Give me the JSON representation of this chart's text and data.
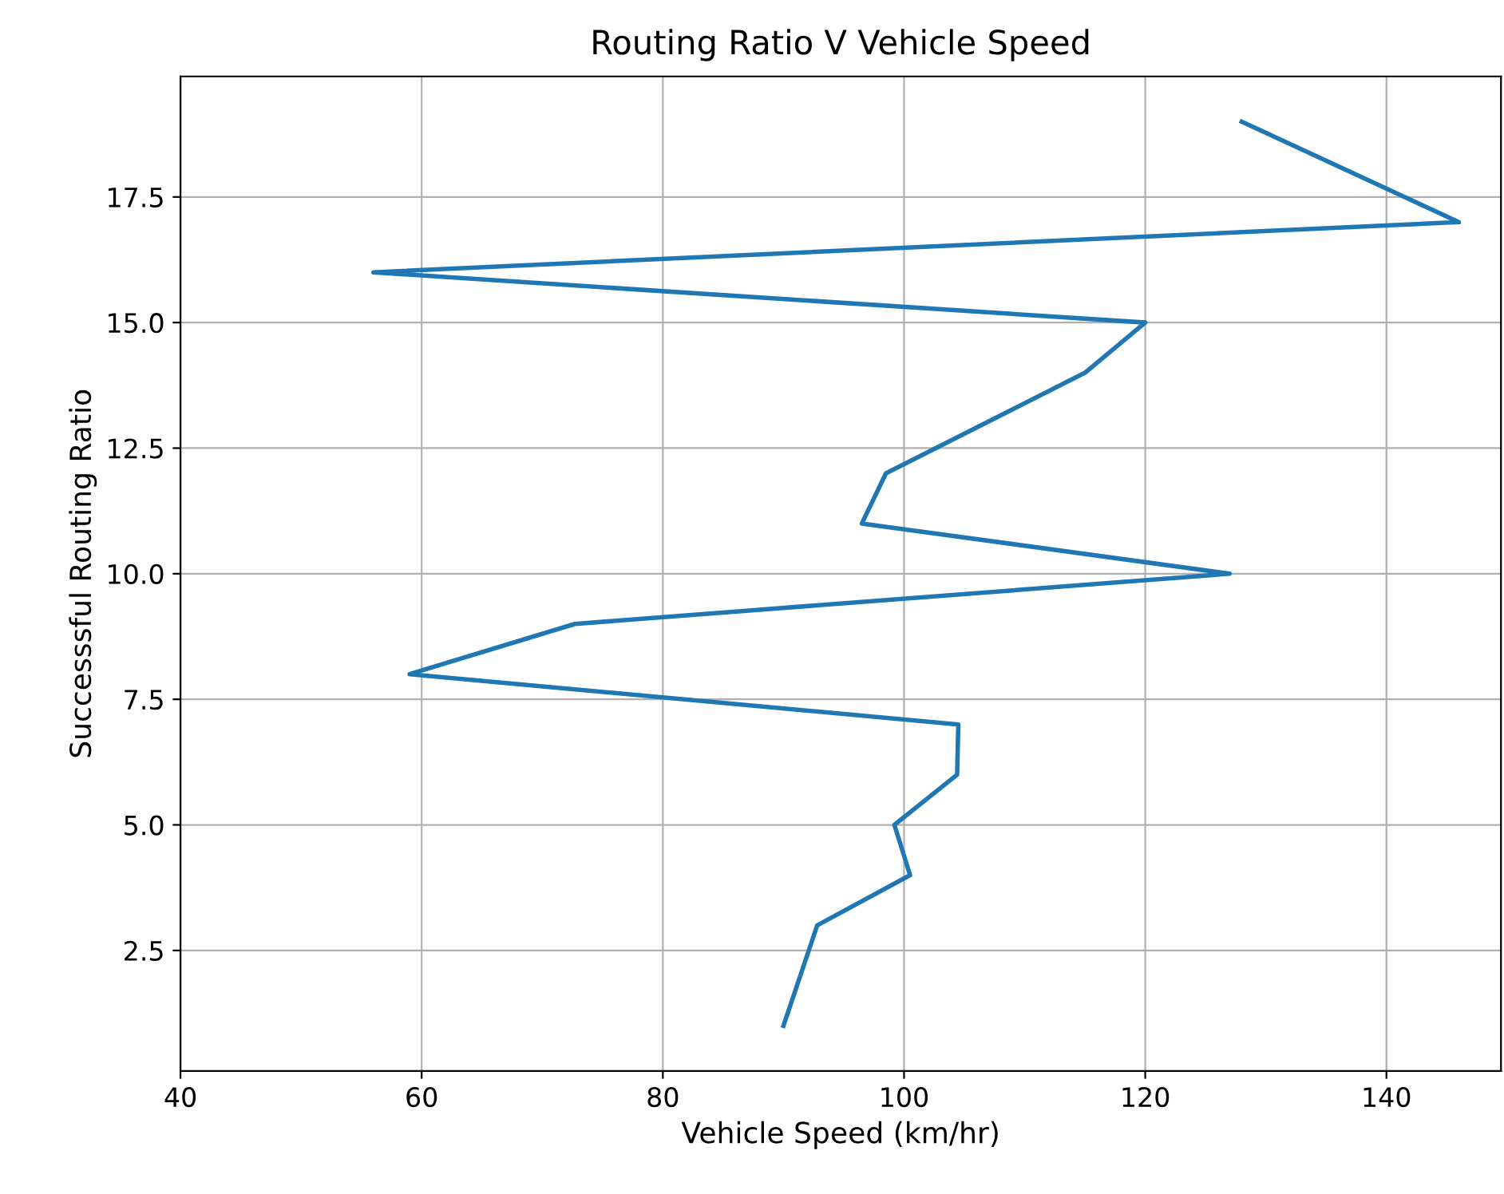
{
  "chart_data": {
    "type": "line",
    "title": "Routing Ratio V Vehicle Speed",
    "xlabel": "Vehicle Speed (km/hr)",
    "ylabel": "Successsful Routing Ratio",
    "x": [
      90,
      92.8,
      100.5,
      99.2,
      104.4,
      104.5,
      59,
      72.7,
      127,
      96.5,
      98.5,
      115,
      120,
      56,
      146,
      128
    ],
    "series": [
      {
        "color": "#1f77b4",
        "values": [
          1,
          3,
          4,
          5,
          6,
          7,
          8,
          9,
          10,
          11,
          12,
          14,
          15,
          16,
          17,
          19
        ]
      }
    ],
    "xlim": [
      40,
      149.5
    ],
    "xticks": [
      40,
      60,
      80,
      100,
      120,
      140
    ],
    "ylim": [
      0.1,
      19.9
    ],
    "yticks": [
      {
        "value": 2.5,
        "label": "2.5"
      },
      {
        "value": 5,
        "label": "5.0"
      },
      {
        "value": 7.5,
        "label": "7.5"
      },
      {
        "value": 10,
        "label": "10.0"
      },
      {
        "value": 12.5,
        "label": "12.5"
      },
      {
        "value": 15,
        "label": "15.0"
      },
      {
        "value": 17.5,
        "label": "17.5"
      }
    ],
    "grid": true
  }
}
